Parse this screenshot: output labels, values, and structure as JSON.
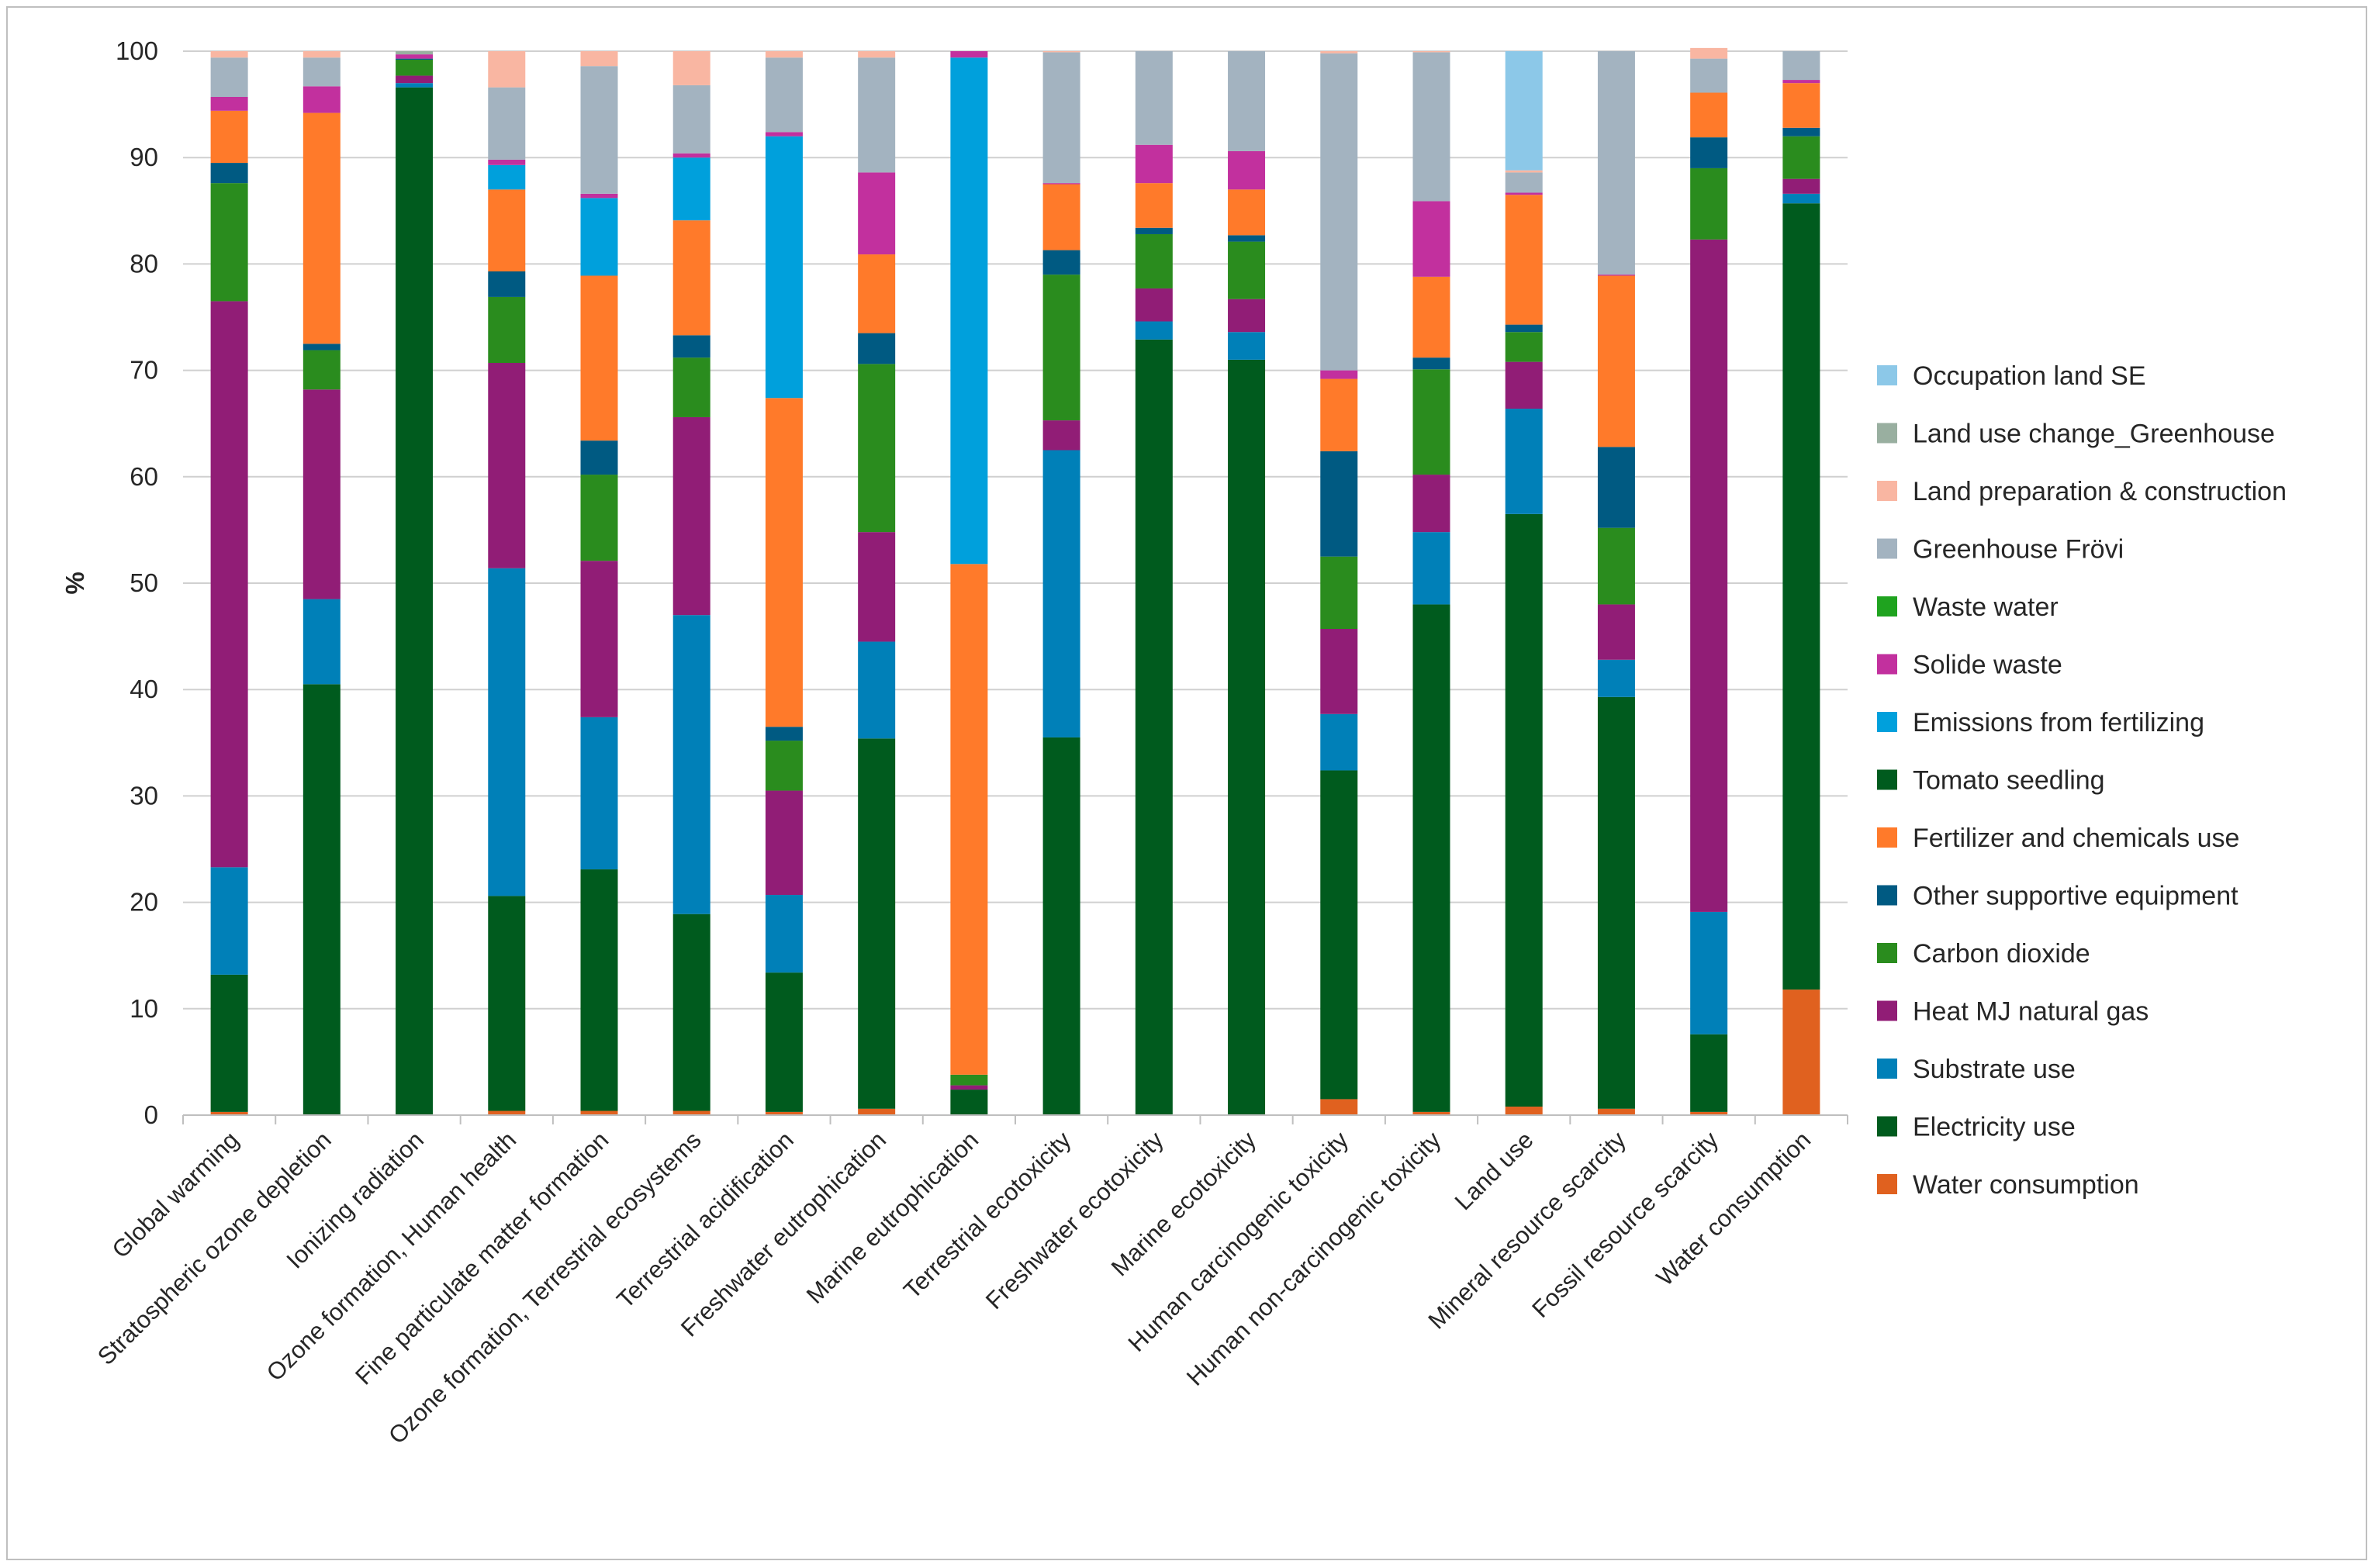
{
  "chart_data": {
    "type": "bar",
    "stacked": true,
    "title": "",
    "xlabel": "",
    "ylabel": "%",
    "ylim": [
      0,
      100
    ],
    "yticks": [
      "0",
      "10",
      "20",
      "30",
      "40",
      "50",
      "60",
      "70",
      "80",
      "90",
      "100"
    ],
    "grid": true,
    "legend_position": "right",
    "categories": [
      "Global warming",
      "Stratospheric ozone depletion",
      "Ionizing radiation",
      "Ozone formation, Human health",
      "Fine particulate matter formation",
      "Ozone formation, Terrestrial ecosystems",
      "Terrestrial acidification",
      "Freshwater eutrophication",
      "Marine eutrophication",
      "Terrestrial ecotoxicity",
      "Freshwater ecotoxicity",
      "Marine ecotoxicity",
      "Human carcinogenic toxicity",
      "Human non-carcinogenic toxicity",
      "Land use",
      "Mineral resource scarcity",
      "Fossil resource scarcity",
      "Water consumption"
    ],
    "series": [
      {
        "name": "Water consumption",
        "color": "#E0611F",
        "values": [
          0.3,
          0,
          0,
          0.4,
          0.4,
          0.4,
          0.3,
          0.6,
          0,
          0,
          0,
          0,
          1.5,
          0.3,
          0.8,
          0.6,
          0.3,
          11.8
        ]
      },
      {
        "name": "Electricity use",
        "color": "#005B1E",
        "values": [
          12.9,
          40.5,
          96.6,
          20.2,
          22.7,
          18.5,
          13.1,
          34.8,
          2.4,
          35.5,
          72.9,
          71.0,
          30.9,
          47.7,
          55.7,
          38.7,
          7.3,
          73.9
        ]
      },
      {
        "name": "Substrate use",
        "color": "#0080B8",
        "values": [
          10.1,
          8.0,
          0.4,
          30.8,
          14.3,
          28.1,
          7.3,
          9.1,
          0,
          27.0,
          1.7,
          2.6,
          5.3,
          6.8,
          9.9,
          3.5,
          11.5,
          0.9
        ]
      },
      {
        "name": "Heat MJ natural gas",
        "color": "#911D76",
        "values": [
          53.2,
          19.7,
          0.7,
          19.3,
          14.7,
          18.6,
          9.8,
          10.3,
          0.4,
          2.8,
          3.1,
          3.1,
          8.0,
          5.4,
          4.4,
          5.2,
          63.2,
          1.4
        ]
      },
      {
        "name": "Carbon dioxide",
        "color": "#2A8C1E",
        "values": [
          11.1,
          3.7,
          1.5,
          6.2,
          8.1,
          5.6,
          4.7,
          15.8,
          1.0,
          13.7,
          5.1,
          5.4,
          6.8,
          9.9,
          2.8,
          7.2,
          6.7,
          4.0
        ]
      },
      {
        "name": "Other supportive equipment",
        "color": "#005A82",
        "values": [
          1.9,
          0.6,
          0.1,
          2.4,
          3.2,
          2.1,
          1.3,
          2.9,
          0,
          2.3,
          0.6,
          0.6,
          9.9,
          1.1,
          0.7,
          7.6,
          2.9,
          0.8
        ]
      },
      {
        "name": "Fertilizer and chemicals use",
        "color": "#FF7A2A",
        "values": [
          4.9,
          21.7,
          0,
          7.7,
          15.5,
          10.8,
          30.9,
          7.4,
          48.0,
          6.2,
          4.2,
          4.3,
          6.8,
          7.6,
          12.2,
          16.1,
          4.2,
          4.2
        ]
      },
      {
        "name": "Tomato seedling",
        "color": "#005B1E",
        "values": [
          0,
          0,
          0,
          0,
          0,
          0,
          0,
          0,
          0,
          0,
          0,
          0,
          0,
          0,
          0,
          0,
          0,
          0
        ]
      },
      {
        "name": "Emissions from fertilizing",
        "color": "#00A0DC",
        "values": [
          0,
          0,
          0,
          2.3,
          7.3,
          5.9,
          24.6,
          0,
          47.6,
          0,
          0,
          0,
          0,
          0,
          0,
          0,
          0,
          0
        ]
      },
      {
        "name": "Solide waste",
        "color": "#C2309E",
        "values": [
          1.3,
          2.5,
          0.4,
          0.5,
          0.4,
          0.4,
          0.4,
          7.7,
          0.6,
          0.1,
          3.6,
          3.6,
          0.8,
          7.1,
          0.2,
          0.1,
          0,
          0.3
        ]
      },
      {
        "name": "Waste water",
        "color": "#1FA31F",
        "values": [
          0,
          0,
          0,
          0,
          0,
          0,
          0,
          0,
          0,
          0,
          0,
          0,
          0,
          0,
          0,
          0,
          0,
          0
        ]
      },
      {
        "name": "Greenhouse Frövi",
        "color": "#A3B3C0",
        "values": [
          3.7,
          2.7,
          0,
          6.8,
          12.0,
          6.4,
          7.0,
          10.8,
          0,
          12.3,
          8.8,
          9.4,
          29.8,
          14.0,
          1.9,
          21.0,
          3.2,
          2.7
        ]
      },
      {
        "name": "Land preparation & construction",
        "color": "#F9B6A2",
        "values": [
          0.6,
          0.6,
          0,
          3.4,
          1.4,
          3.2,
          0.6,
          0.6,
          0,
          0.1,
          0,
          0,
          0.2,
          0.1,
          0.2,
          0,
          1.0,
          0
        ]
      },
      {
        "name": "Land use change_Greenhouse",
        "color": "#99AFA0",
        "values": [
          0,
          0,
          0.3,
          0,
          0,
          0,
          0,
          0,
          0,
          0,
          0,
          0,
          0,
          0,
          0,
          0,
          0,
          0
        ]
      },
      {
        "name": "Occupation land SE",
        "color": "#8CC8E8",
        "values": [
          0,
          0,
          0,
          0,
          0,
          0,
          0,
          0,
          0,
          0,
          0,
          0,
          0,
          0,
          11.2,
          0,
          0,
          0
        ]
      }
    ],
    "legend": [
      {
        "name": "Occupation land SE",
        "color": "#8CC8E8"
      },
      {
        "name": "Land use change_Greenhouse",
        "color": "#99AFA0"
      },
      {
        "name": "Land preparation & construction",
        "color": "#F9B6A2"
      },
      {
        "name": "Greenhouse Frövi",
        "color": "#A3B3C0"
      },
      {
        "name": "Waste water",
        "color": "#1FA31F"
      },
      {
        "name": "Solide waste",
        "color": "#C2309E"
      },
      {
        "name": "Emissions from fertilizing",
        "color": "#00A0DC"
      },
      {
        "name": "Tomato seedling",
        "color": "#005B1E"
      },
      {
        "name": "Fertilizer and chemicals use",
        "color": "#FF7A2A"
      },
      {
        "name": "Other supportive equipment",
        "color": "#005A82"
      },
      {
        "name": "Carbon dioxide",
        "color": "#2A8C1E"
      },
      {
        "name": "Heat MJ natural gas",
        "color": "#911D76"
      },
      {
        "name": "Substrate use",
        "color": "#0080B8"
      },
      {
        "name": "Electricity use",
        "color": "#005B1E"
      },
      {
        "name": "Water consumption",
        "color": "#E0611F"
      }
    ]
  }
}
